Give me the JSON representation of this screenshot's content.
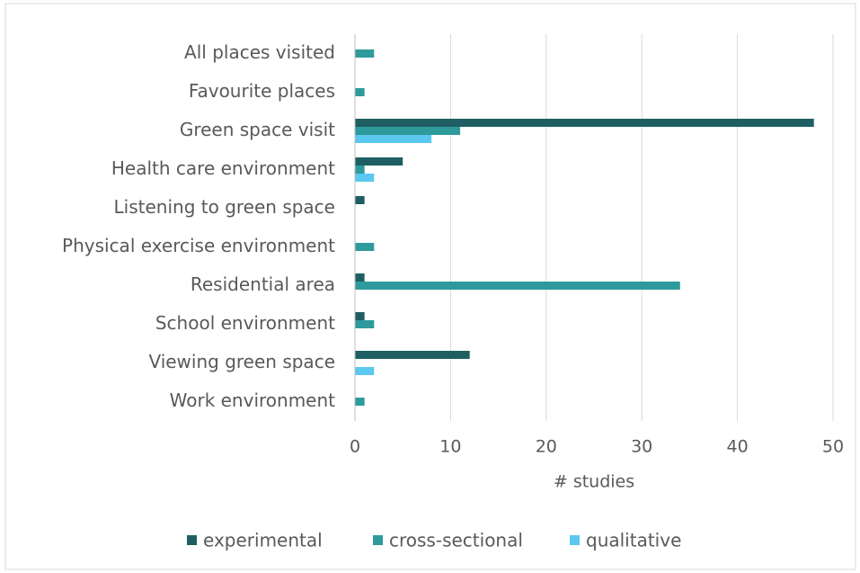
{
  "chart_data": {
    "type": "bar",
    "orientation": "horizontal",
    "categories": [
      "All places visited",
      "Favourite places",
      "Green space visit",
      "Health care environment",
      "Listening to green space",
      "Physical exercise environment",
      "Residential area",
      "School environment",
      "Viewing green space",
      "Work environment"
    ],
    "series": [
      {
        "name": "experimental",
        "color": "#1f5f63",
        "values": [
          0,
          0,
          48,
          5,
          1,
          0,
          1,
          1,
          12,
          0
        ]
      },
      {
        "name": "cross-sectional",
        "color": "#2e9a9c",
        "values": [
          2,
          1,
          11,
          1,
          0,
          2,
          34,
          2,
          0,
          1
        ]
      },
      {
        "name": "qualitative",
        "color": "#5bc8f0",
        "values": [
          0,
          0,
          8,
          2,
          0,
          0,
          0,
          0,
          2,
          0
        ]
      }
    ],
    "xlabel": "# studies",
    "xlim": [
      0,
      50
    ],
    "xticks": [
      0,
      10,
      20,
      30,
      40,
      50
    ],
    "grid": true,
    "legend": "bottom"
  }
}
